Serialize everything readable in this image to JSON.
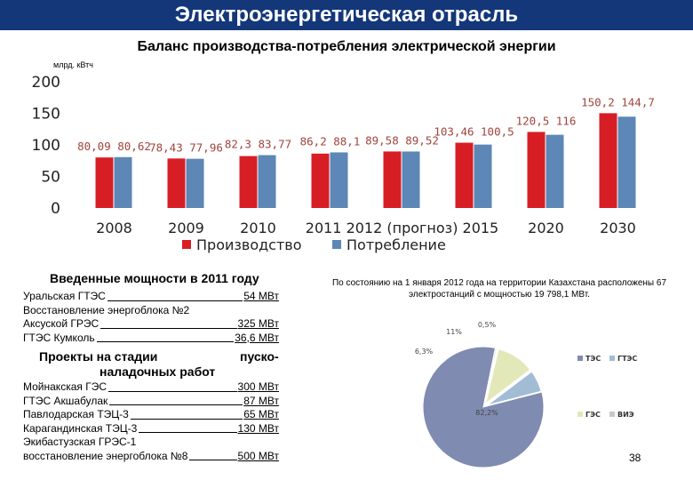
{
  "header": {
    "banner": "Электроэнергетическая отрасль",
    "subtitle": "Баланс производства-потребления  электрической энергии"
  },
  "chart_data": [
    {
      "type": "bar",
      "unit_label": "млрд. кВтч",
      "categories": [
        "2008",
        "2009",
        "2010",
        "2011",
        "2012 (прогноз)",
        "2015",
        "2020",
        "2030"
      ],
      "ylim": [
        0,
        200
      ],
      "yticks": [
        "0",
        "50",
        "100",
        "150",
        "200"
      ],
      "series": [
        {
          "name": "Производство",
          "color": "#d71e25",
          "values": [
            80.09,
            78.43,
            82.3,
            86.2,
            89.58,
            103.46,
            120.5,
            150.2
          ],
          "labels": [
            "80,09",
            "78,43",
            "82,3",
            "86,2",
            "89,58",
            "103,46",
            "120,5",
            "150,2"
          ]
        },
        {
          "name": "Потребление",
          "color": "#5c87b6",
          "values": [
            80.62,
            77.96,
            83.77,
            88.1,
            89.52,
            100.5,
            116,
            144.7
          ],
          "labels": [
            "80,62",
            "77,96",
            "83,77",
            "88,1",
            "89,52",
            "100,5",
            "116",
            "144,7"
          ]
        }
      ],
      "x_label_parts": [
        "2008",
        "2009",
        "2010",
        "2011 2012 (прогноз) 2015",
        "2020",
        "2030"
      ],
      "legend_position": "bottom",
      "label_color": "#a0443c"
    },
    {
      "type": "pie",
      "slices": [
        {
          "label": "82,2%",
          "value": 82.2,
          "color": "#7f8bb0"
        },
        {
          "label": "6,3%",
          "value": 6.3,
          "color": "#a2bcd6"
        },
        {
          "label": "11%",
          "value": 11,
          "color": "#e2e8b8"
        },
        {
          "label": "0,5%",
          "value": 0.5,
          "color": "#ececec"
        }
      ],
      "legend": [
        "ТЭС",
        "ГТЭС",
        "ГЭС",
        "ВИЭ"
      ],
      "legend_colors": [
        "#7f8bb0",
        "#a2bcd6",
        "#e2e8b8",
        "#c8c8c8"
      ]
    }
  ],
  "capacity": {
    "title": "Введенные мощности в 2011 году",
    "items": [
      {
        "name": "Уральская ГТЭС",
        "value": "54 МВт"
      },
      {
        "name": "Восстановление энергоблока №2"
      },
      {
        "name": "Аксуской ГРЭС",
        "value": "325 МВт"
      },
      {
        "name": "ГТЭС Кумколь",
        "value": "36,6 МВт"
      }
    ]
  },
  "projects": {
    "title_line1": "Проекты на стадии",
    "title_line1_right": "пуско-",
    "title_line2": "наладочных работ",
    "items": [
      {
        "name": "Мойнакская ГЭС",
        "value": "300 МВт"
      },
      {
        "name": "ГТЭС Акшабулак",
        "value": "87  МВт"
      },
      {
        "name": "Павлодарская ТЭЦ-3",
        "value": "65  МВт"
      },
      {
        "name": "Карагандинская ТЭЦ-3",
        "value": "130 МВт"
      },
      {
        "name": "Экибастузская ГРЭС-1"
      },
      {
        "name": "восстановление энергоблока №8",
        "value": "500 МВт"
      }
    ]
  },
  "status_text": "По состоянию на 1 января 2012 года на территории Казахстана расположены 67 электростанций с мощностью 19 798,1 МВт.",
  "slide_number": "38"
}
